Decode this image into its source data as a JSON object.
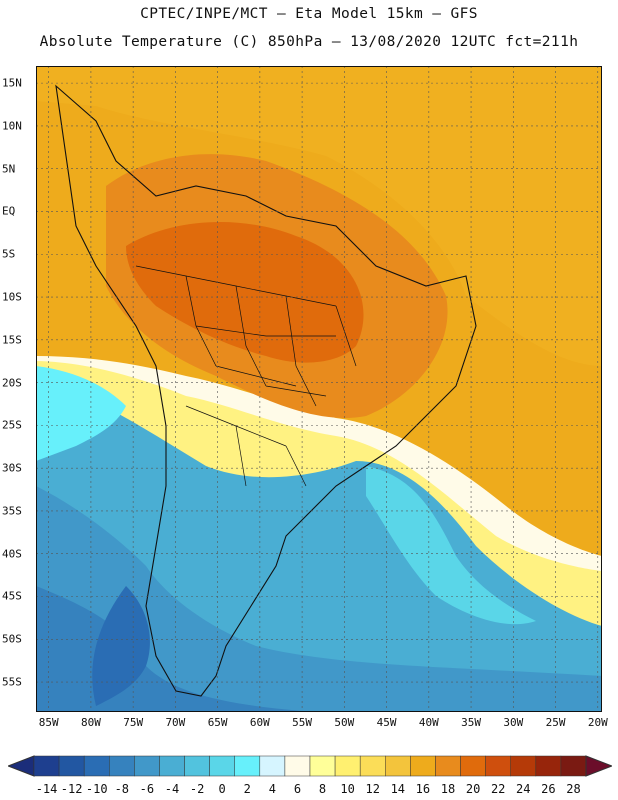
{
  "title_line1": "CPTEC/INPE/MCT –  Eta Model 15km – GFS",
  "title_line2": "Absolute Temperature (C) 850hPa – 13/08/2020 12UTC fct=211h",
  "lat_labels": [
    "15N",
    "10N",
    "5N",
    "EQ",
    "5S",
    "10S",
    "15S",
    "20S",
    "25S",
    "30S",
    "35S",
    "40S",
    "45S",
    "50S",
    "55S"
  ],
  "lon_labels": [
    "85W",
    "80W",
    "75W",
    "70W",
    "65W",
    "60W",
    "55W",
    "50W",
    "45W",
    "40W",
    "35W",
    "30W",
    "25W",
    "20W"
  ],
  "colorbar": {
    "ticks": [
      "-14",
      "-12",
      "-10",
      "-8",
      "-6",
      "-4",
      "-2",
      "0",
      "2",
      "4",
      "6",
      "8",
      "10",
      "12",
      "14",
      "16",
      "18",
      "20",
      "22",
      "24",
      "26",
      "28"
    ],
    "colors": [
      "#1e3f8f",
      "#2257a2",
      "#2a6db4",
      "#3682be",
      "#4198c9",
      "#4aaed3",
      "#52c3de",
      "#5ad6e8",
      "#67f0fb",
      "#d6f5ff",
      "#fffbe8",
      "#ffff99",
      "#fff070",
      "#fbdd58",
      "#f3c43c",
      "#eeab1c",
      "#e88b1d",
      "#e06b0c",
      "#cf4f0d",
      "#b53a08",
      "#97250b",
      "#7a1a12"
    ],
    "min_color": "#1b2d7a",
    "max_color": "#6b0d2a"
  },
  "map": {
    "lon_min": -86.5,
    "lon_max": -19.5,
    "lat_min": -58.5,
    "lat_max": 17.0,
    "regions": [
      {
        "name": "background-warm",
        "color": "#eeab1c"
      },
      {
        "name": "north-warm-ocean",
        "color": "#f0b020"
      },
      {
        "name": "south-atlantic-cold",
        "color": "#4aaed3"
      },
      {
        "name": "south-pacific-cold",
        "color": "#4198c9"
      },
      {
        "name": "southern-ocean-colder",
        "color": "#3682be"
      },
      {
        "name": "pacific-cyan-tongue",
        "color": "#67f0fb"
      },
      {
        "name": "atlantic-cyan-tongue",
        "color": "#5ad6e8"
      },
      {
        "name": "pale-band",
        "color": "#fffbe8"
      },
      {
        "name": "yellow-band",
        "color": "#fff070"
      },
      {
        "name": "amazon-hot",
        "color": "#e88b1d"
      },
      {
        "name": "central-brazil-hottest",
        "color": "#e06b0c"
      },
      {
        "name": "patagonia-cold",
        "color": "#2a6db4"
      }
    ]
  }
}
